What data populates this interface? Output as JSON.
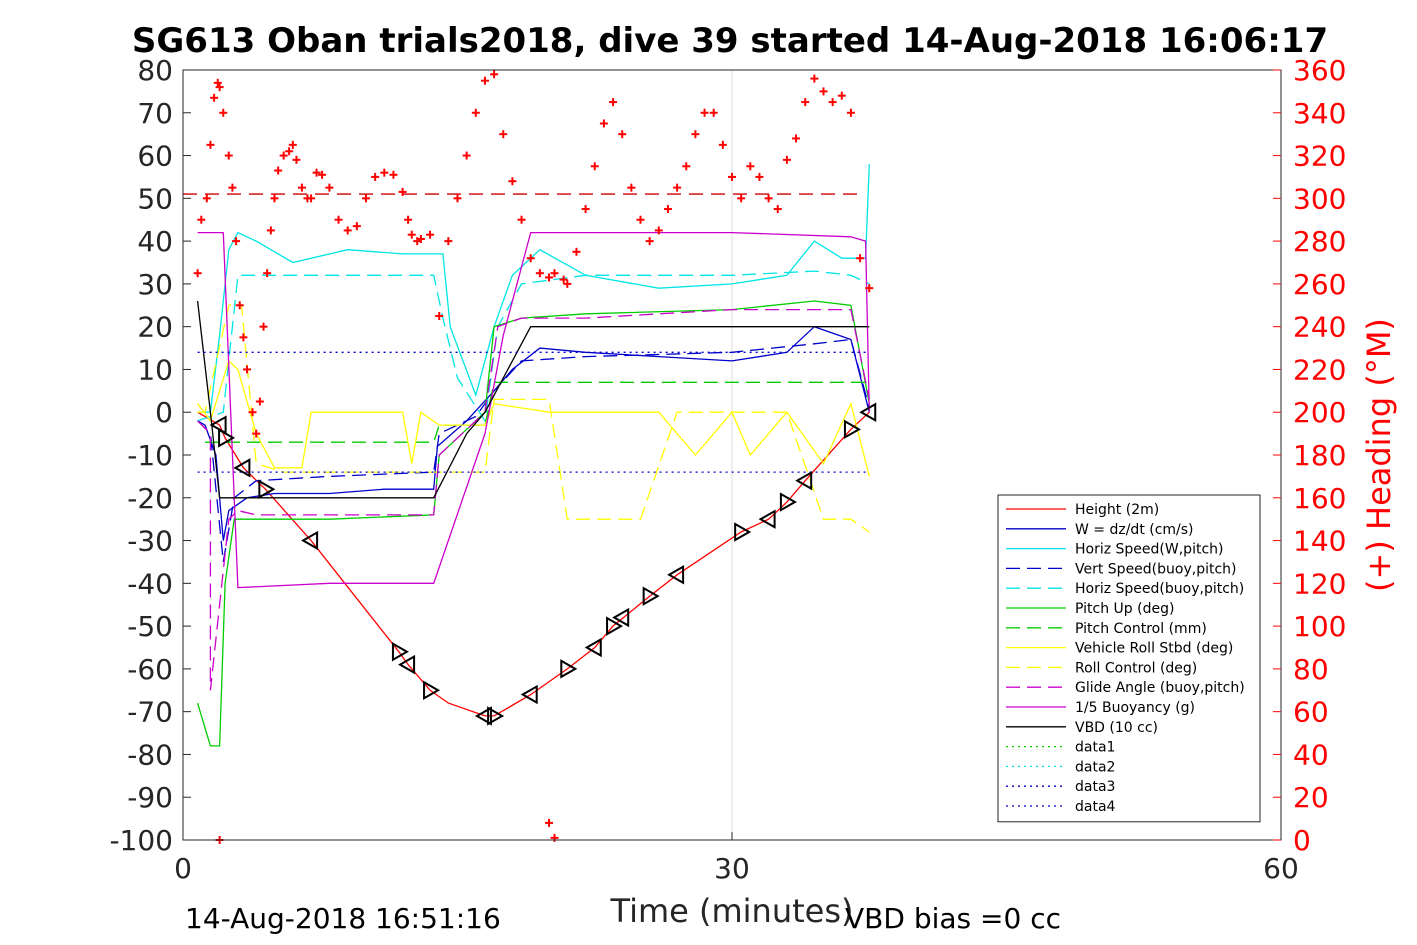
{
  "chart_data": {
    "type": "line",
    "title": "SG613 Oban trials2018, dive 39 started 14-Aug-2018 16:06:17",
    "xlabel": "Time (minutes)",
    "ylabel": "",
    "y2label": "(+) Heading (°M)",
    "xlim": [
      0,
      60
    ],
    "ylim": [
      -100,
      80
    ],
    "y2lim": [
      0,
      360
    ],
    "x_ticks": [
      0,
      30,
      60
    ],
    "y_ticks": [
      80,
      70,
      60,
      50,
      40,
      30,
      20,
      10,
      0,
      -10,
      -20,
      -30,
      -40,
      -50,
      -60,
      -70,
      -80,
      -90,
      -100
    ],
    "y2_ticks": [
      360,
      340,
      320,
      300,
      280,
      260,
      240,
      220,
      200,
      180,
      160,
      140,
      120,
      100,
      80,
      60,
      40,
      20,
      0
    ],
    "grid": "x-only at 30",
    "legend_position": "bottom-right inside",
    "footer_left": "14-Aug-2018 16:51:16",
    "footer_right": "VBD bias =0 cc",
    "series": [
      {
        "name": "Height (2m)",
        "color": "#ff0000",
        "style": "solid",
        "x": [
          0.8,
          2.0,
          2.3,
          3.3,
          4.5,
          7.0,
          11.8,
          12.3,
          13.5,
          14.5,
          16.5,
          17.0,
          19.0,
          21.0,
          22.5,
          23.5,
          25.5,
          27.0,
          30.5,
          32.0,
          33.0,
          34.0,
          36.5,
          37.5
        ],
        "y": [
          0,
          -3,
          -6,
          -13,
          -18,
          -30,
          -56,
          -59,
          -65,
          -68,
          -71,
          -71,
          -66,
          -60,
          -55,
          -50,
          -43,
          -38,
          -28,
          -25,
          -21,
          -16,
          -4,
          0
        ]
      },
      {
        "name": "W = dz/dt (cm/s)",
        "color": "#0000cc",
        "style": "solid",
        "x": [
          0.8,
          1.2,
          1.8,
          2.2,
          2.5,
          3.5,
          5,
          8,
          11,
          13.7,
          13.9,
          15.5,
          17,
          18,
          19.5,
          22,
          26,
          30,
          33,
          34.5,
          36.5,
          37.5
        ],
        "y": [
          -2,
          -3,
          -10,
          -30,
          -23,
          -20,
          -19,
          -19,
          -18,
          -18,
          -8,
          -2,
          5,
          10,
          15,
          14,
          13,
          12,
          14,
          20,
          17,
          0
        ]
      },
      {
        "name": "Horiz Speed(W,pitch)",
        "color": "#00e5e5",
        "style": "solid",
        "x": [
          0.8,
          1.5,
          2.0,
          2.5,
          3.0,
          4.0,
          6,
          9,
          12,
          14.2,
          14.6,
          16,
          17,
          18,
          19.5,
          22,
          26,
          30,
          33,
          34.5,
          36,
          37.3,
          37.5
        ],
        "y": [
          0,
          0,
          18,
          38,
          42,
          40,
          35,
          38,
          37,
          37,
          20,
          4,
          20,
          32,
          38,
          32,
          29,
          30,
          32,
          40,
          36,
          36,
          58
        ]
      },
      {
        "name": "Vert Speed(buoy,pitch)",
        "color": "#0000cc",
        "style": "dashed",
        "x": [
          0.8,
          1.5,
          2.2,
          2.8,
          4,
          8,
          13.7,
          14.0,
          16,
          17,
          18.5,
          22,
          30,
          34.5,
          36.5,
          37.5
        ],
        "y": [
          -2,
          -5,
          -35,
          -20,
          -16,
          -15,
          -14,
          -5,
          -1,
          5,
          12,
          13,
          14,
          16,
          17,
          1
        ]
      },
      {
        "name": "Horiz Speed(buoy,pitch)",
        "color": "#00e5e5",
        "style": "dashed",
        "x": [
          0.8,
          2.2,
          3.0,
          4.5,
          8,
          13.7,
          14.2,
          15.0,
          16.5,
          17.2,
          18.5,
          22,
          30,
          34.5,
          36.5,
          37.5
        ],
        "y": [
          -2,
          0,
          32,
          32,
          32,
          32,
          22,
          8,
          -2,
          20,
          30,
          32,
          32,
          33,
          32,
          30
        ]
      },
      {
        "name": "Pitch Up (deg)",
        "color": "#00cc00",
        "style": "solid",
        "x": [
          0.8,
          1.5,
          2.0,
          2.3,
          2.8,
          4,
          8,
          13.7,
          14.0,
          16.5,
          17.0,
          18.5,
          22,
          30,
          34.5,
          36.5,
          37.5
        ],
        "y": [
          -68,
          -78,
          -78,
          -40,
          -25,
          -25,
          -25,
          -24,
          -10,
          0,
          20,
          22,
          23,
          24,
          26,
          25,
          2
        ]
      },
      {
        "name": "Pitch Control (mm)",
        "color": "#00cc00",
        "style": "dashed",
        "x": [
          1.2,
          2.2,
          13.7,
          14.0,
          16.5,
          17.0,
          37.5
        ],
        "y": [
          -7,
          -7,
          -7,
          -3,
          -3,
          7,
          7
        ]
      },
      {
        "name": "Vehicle Roll Stbd (deg)",
        "color": "#ffff00",
        "style": "solid",
        "x": [
          0.8,
          1.5,
          2.5,
          3.0,
          4.0,
          5.0,
          6.5,
          7.0,
          9,
          12,
          12.5,
          13,
          14,
          16.5,
          17,
          20,
          22,
          24,
          26,
          28,
          30,
          31,
          33,
          35,
          36.5,
          37.5
        ],
        "y": [
          2,
          -2,
          12,
          10,
          -5,
          -13,
          -13,
          0,
          0,
          0,
          -12,
          0,
          -3,
          -3,
          2,
          0,
          0,
          0,
          0,
          -10,
          0,
          -10,
          0,
          -12,
          2,
          -15
        ]
      },
      {
        "name": "Roll Control (deg)",
        "color": "#ffff00",
        "style": "dashed",
        "x": [
          0.8,
          1.2,
          2.5,
          3.2,
          4.0,
          5.5,
          7.0,
          8,
          12,
          14,
          16.5,
          17,
          20,
          21,
          25,
          27,
          33,
          35,
          36.5,
          37.5
        ],
        "y": [
          0,
          0,
          25,
          25,
          -12,
          -14,
          -14,
          -14,
          -14,
          -14,
          -14,
          3,
          3,
          -25,
          -25,
          0,
          0,
          -25,
          -25,
          -28
        ]
      },
      {
        "name": "Glide Angle (buoy,pitch)",
        "color": "#cc00cc",
        "style": "dashed",
        "x": [
          0.8,
          1.5,
          1.5,
          2.5,
          3.0,
          4,
          8,
          13.7,
          14.0,
          16.5,
          17.2,
          18.5,
          22,
          30,
          34.5,
          36.5,
          37.5
        ],
        "y": [
          -2,
          -5,
          -65,
          -25,
          -23,
          -24,
          -24,
          -24,
          -10,
          0,
          20,
          22,
          22,
          24,
          24,
          24,
          3
        ]
      },
      {
        "name": "1/5 Buoyancy (g)",
        "color": "#cc00cc",
        "style": "solid",
        "x": [
          0.8,
          2.2,
          3.0,
          8,
          13.7,
          16.5,
          17.5,
          19.0,
          25,
          30,
          36.5,
          37.3,
          37.5
        ],
        "y": [
          42,
          42,
          -41,
          -40,
          -40,
          -5,
          18,
          42,
          42,
          42,
          41,
          40,
          0
        ]
      },
      {
        "name": "VBD (10 cc)",
        "color": "#000000",
        "style": "solid",
        "x": [
          0.8,
          1.5,
          2.0,
          13.7,
          15.5,
          16.5,
          19.0,
          37.5
        ],
        "y": [
          26,
          0,
          -20,
          -20,
          -5,
          0,
          20,
          20
        ]
      },
      {
        "name": "data1",
        "color": "#00cc00",
        "style": "dotted",
        "x": [],
        "y": []
      },
      {
        "name": "data2",
        "color": "#00e5e5",
        "style": "dotted",
        "x": [],
        "y": []
      },
      {
        "name": "data3",
        "color": "#0000cc",
        "style": "dotted",
        "x": [
          0.8,
          37.5
        ],
        "y": [
          14,
          14
        ]
      },
      {
        "name": "data4",
        "color": "#0000cc",
        "style": "dotted",
        "x": [
          0.8,
          37.5
        ],
        "y": [
          -14,
          -14
        ]
      }
    ],
    "reference_lines": [
      {
        "color": "#cc0000",
        "style": "dashed",
        "axis": "y2",
        "y": 302
      }
    ],
    "heading_points": {
      "color": "#ff0000",
      "marker": "+",
      "axis": "y2",
      "x": [
        0.8,
        1.0,
        1.3,
        1.5,
        1.7,
        1.9,
        2.0,
        2.2,
        2.5,
        2.7,
        2.9,
        3.1,
        3.3,
        3.5,
        3.8,
        4.0,
        4.2,
        4.4,
        4.6,
        4.8,
        5.0,
        5.2,
        5.5,
        5.8,
        6.0,
        6.2,
        6.5,
        6.8,
        7.0,
        7.3,
        7.6,
        8.0,
        8.5,
        9.0,
        9.5,
        10.0,
        10.5,
        11.0,
        11.5,
        12.0,
        12.3,
        12.5,
        12.8,
        13.0,
        13.5,
        14.0,
        14.5,
        15.0,
        15.5,
        16.0,
        16.5,
        17.0,
        17.5,
        18.0,
        18.5,
        19.0,
        19.5,
        20.0,
        20.3,
        20.8,
        21.0,
        21.5,
        22.0,
        22.5,
        23.0,
        23.5,
        24.0,
        24.5,
        25.0,
        25.5,
        26.0,
        26.5,
        27.0,
        27.5,
        28.0,
        28.5,
        29.0,
        29.5,
        30.0,
        30.5,
        31.0,
        31.5,
        32.0,
        32.5,
        33.0,
        33.5,
        34.0,
        34.5,
        35.0,
        35.5,
        36.0,
        36.5,
        37.0,
        37.5
      ],
      "y": [
        265,
        290,
        300,
        325,
        347,
        354,
        352,
        340,
        320,
        305,
        280,
        250,
        235,
        220,
        200,
        190,
        205,
        240,
        265,
        285,
        300,
        313,
        320,
        322,
        325,
        318,
        305,
        300,
        300,
        312,
        311,
        305,
        290,
        285,
        287,
        300,
        310,
        312,
        311,
        303,
        290,
        283,
        280,
        281,
        283,
        245,
        280,
        300,
        320,
        340,
        355,
        358,
        330,
        308,
        290,
        272,
        265,
        263,
        265,
        262,
        260,
        275,
        295,
        315,
        335,
        345,
        330,
        305,
        290,
        280,
        285,
        295,
        305,
        315,
        330,
        340,
        340,
        325,
        310,
        300,
        315,
        310,
        300,
        295,
        318,
        328,
        345,
        356,
        350,
        345,
        348,
        340,
        272,
        258
      ],
      "outliers_x": [
        20.0,
        20.3,
        2.0
      ],
      "outliers_y": [
        8,
        1,
        0
      ]
    },
    "triangles_x": [
      2.0,
      2.3,
      3.3,
      4.5,
      7.0,
      11.8,
      12.3,
      13.5,
      16.5,
      17.0,
      19.0,
      21.0,
      22.5,
      23.5,
      24.0,
      25.5,
      27.0,
      30.5,
      32.0,
      33.0,
      34.0,
      36.5,
      37.5
    ],
    "triangles_y": [
      -3,
      -6,
      -13,
      -18,
      -30,
      -56,
      -59,
      -65,
      -71,
      -71,
      -66,
      -60,
      -55,
      -50,
      -48,
      -43,
      -38,
      -28,
      -25,
      -21,
      -16,
      -4,
      0
    ]
  }
}
